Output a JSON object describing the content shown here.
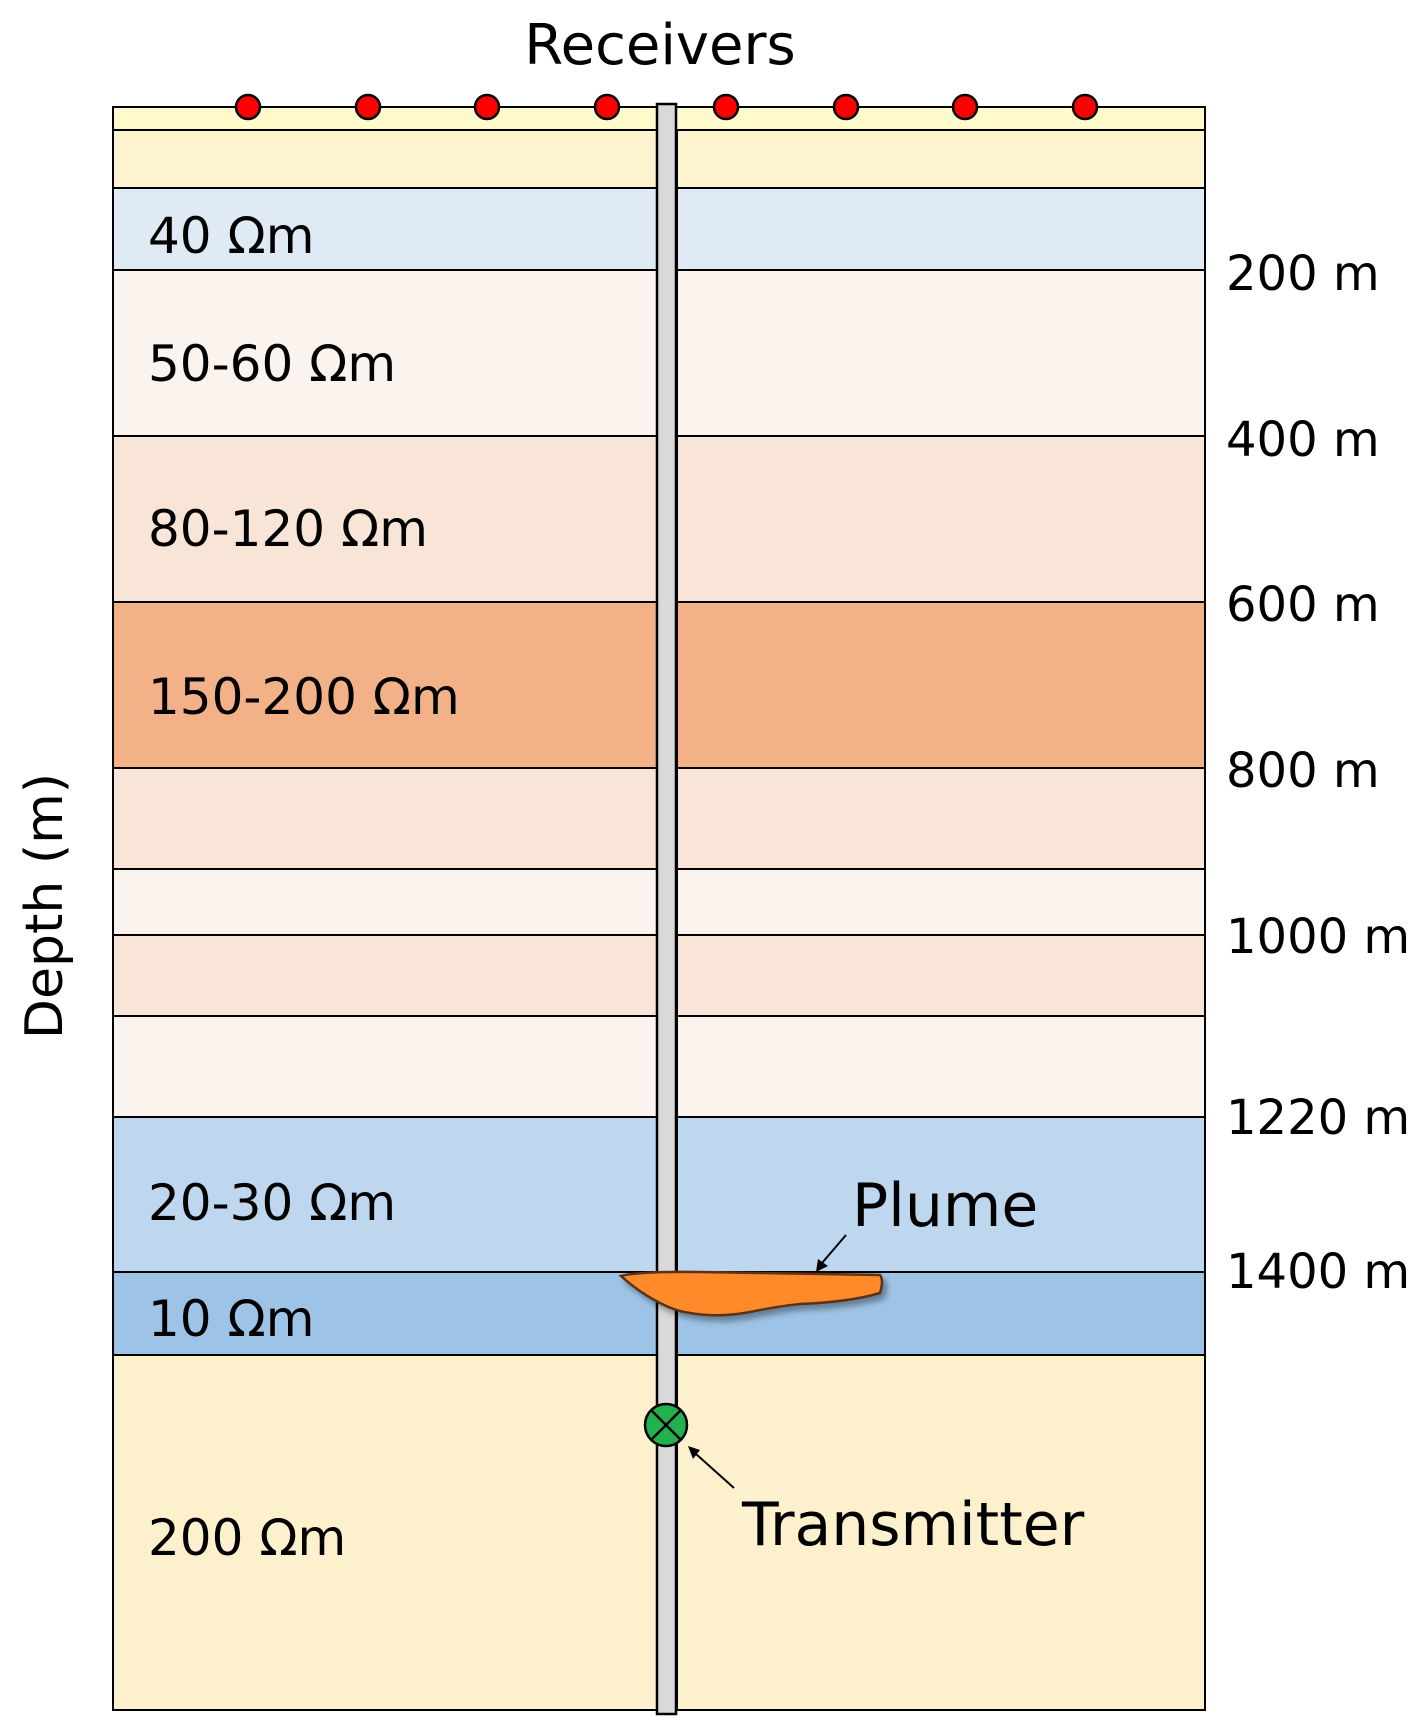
{
  "title": "Receivers",
  "axis_label": "Depth (m)",
  "layers": [
    {
      "label": "",
      "color": "#fdf3cf"
    },
    {
      "label": "40 Ωm",
      "color": "#dfeaf5"
    },
    {
      "label": "50-60 Ωm",
      "color": "#fbf3ed"
    },
    {
      "label": "80-120 Ωm",
      "color": "#f9e5d8"
    },
    {
      "label": "150-200 Ωm",
      "color": "#f2b186"
    },
    {
      "label": "",
      "color": "#f9e5d8"
    },
    {
      "label": "",
      "color": "#fbf3ed"
    },
    {
      "label": "",
      "color": "#f9e5d8"
    },
    {
      "label": "",
      "color": "#fbf3ed"
    },
    {
      "label": "20-30 Ωm",
      "color": "#bed7ee"
    },
    {
      "label": "10 Ωm",
      "color": "#9dc3e6"
    },
    {
      "label": "200 Ωm",
      "color": "#fdf0cd"
    }
  ],
  "depth_ticks": [
    "200 m",
    "400 m",
    "600 m",
    "800 m",
    "1000 m",
    "1220 m",
    "1400 m"
  ],
  "receivers": {
    "count": 8,
    "color": "#ff0000"
  },
  "plume": {
    "label": "Plume",
    "color": "#ff8a2a"
  },
  "transmitter": {
    "label": "Transmitter",
    "color": "#22b14c"
  },
  "well_color": "#d9d9d9"
}
